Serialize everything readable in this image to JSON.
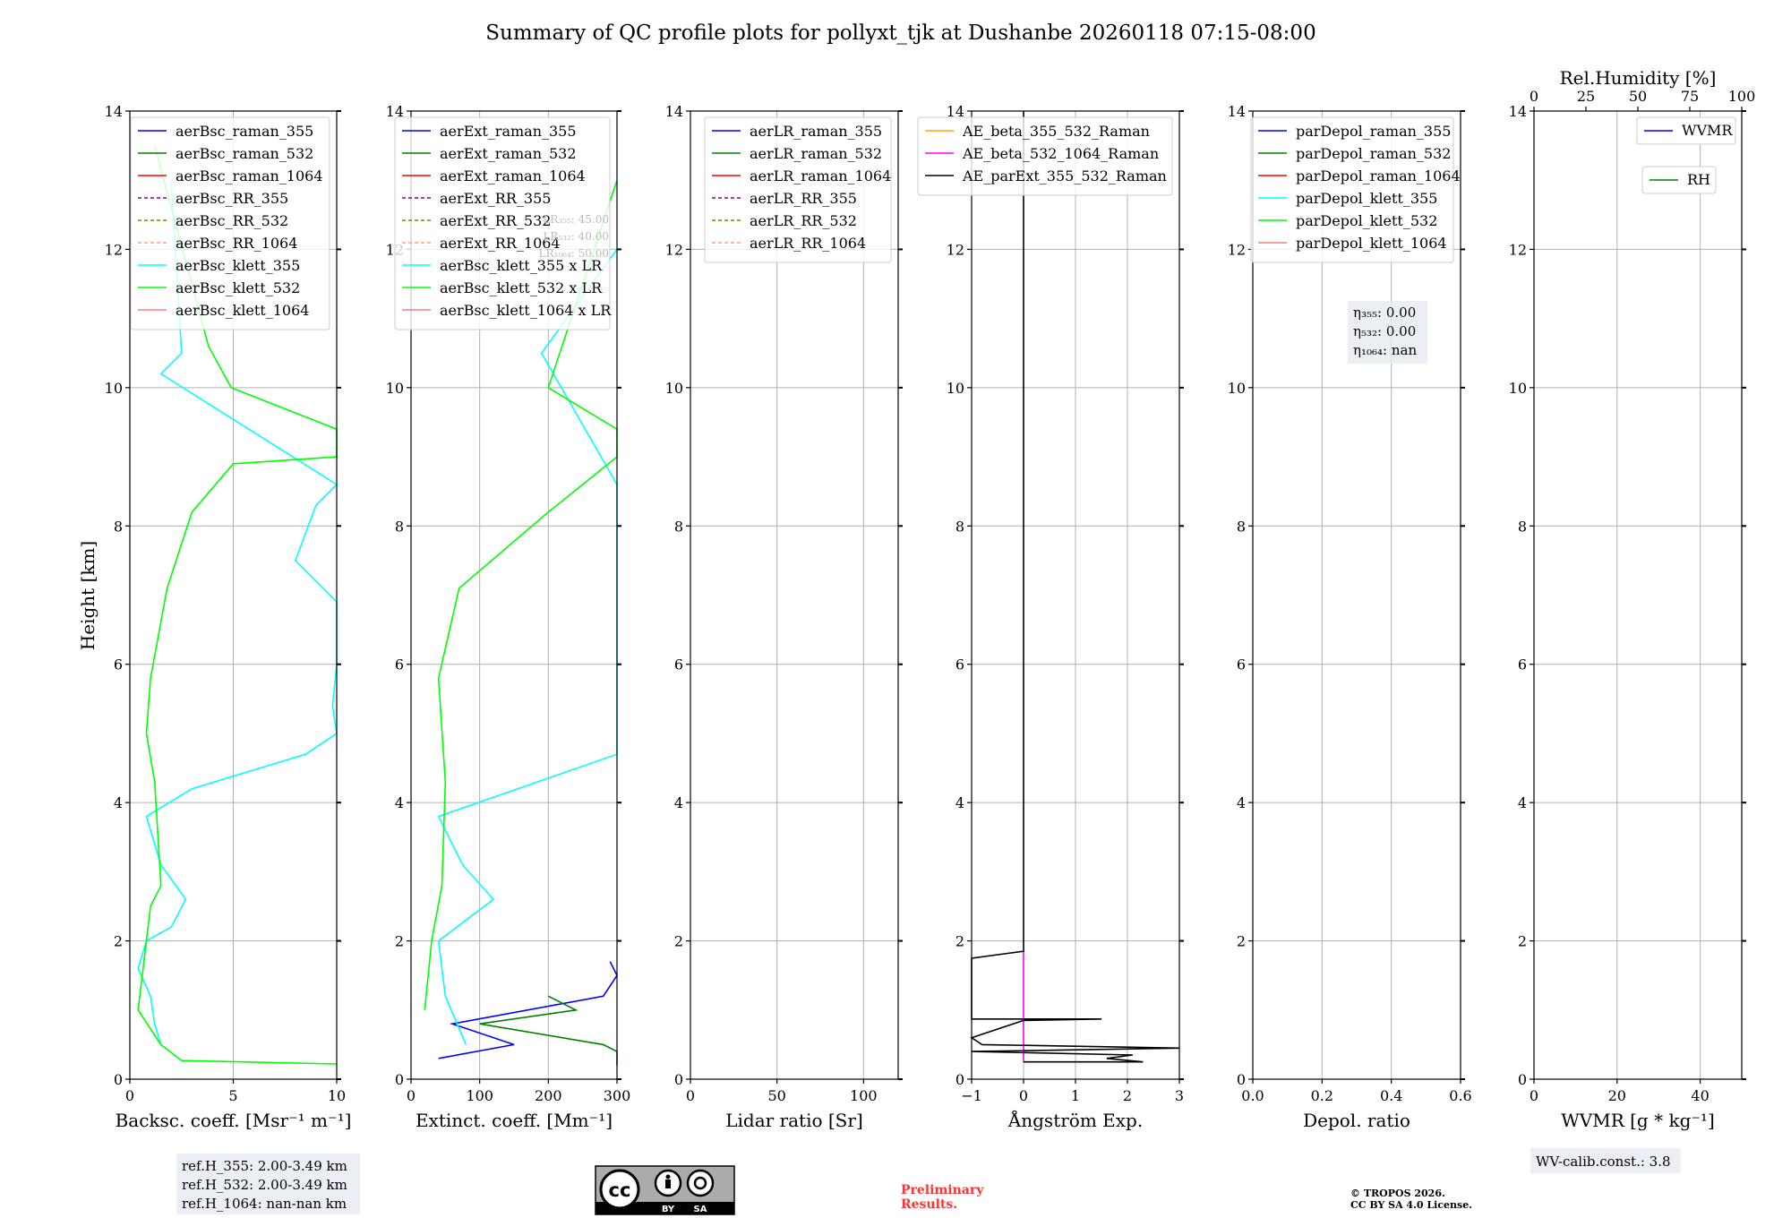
{
  "title": "Summary of QC profile plots for pollyxt_tjk at Dushanbe 20260118 07:15-08:00",
  "colors": {
    "raman_355": "#0000ff",
    "raman_532": "#008000",
    "raman_1064": "#ff0000",
    "rr_355": "#800080",
    "rr_532": "#808000",
    "rr_1064": "#ffa07a",
    "klett_355": "#00ffff",
    "klett_532": "#00ff00",
    "klett_1064": "#f08080",
    "ae_355_532": "#ffa500",
    "ae_532_1064": "#ff00ff",
    "ae_parext": "#000000",
    "wvmr": "#0000ff",
    "rh": "#008000",
    "prelim": "#ff0000"
  },
  "chart_data": [
    {
      "type": "line",
      "id": "bsc",
      "xlabel": "Backsc. coeff. [Msr⁻¹ m⁻¹]",
      "ylabel": "Height [km]",
      "xlim": [
        0,
        10
      ],
      "ylim": [
        0,
        14
      ],
      "xticks": [
        "0",
        "5",
        "10"
      ],
      "xtick_values": [
        0,
        5,
        10
      ],
      "yticks": [
        "0",
        "2",
        "4",
        "6",
        "8",
        "10",
        "12",
        "14"
      ],
      "grid": true,
      "legend_loc": "upper-right",
      "legend": [
        {
          "label": "aerBsc_raman_355",
          "color": "#0000ff",
          "dash": false
        },
        {
          "label": "aerBsc_raman_532",
          "color": "#008000",
          "dash": false
        },
        {
          "label": "aerBsc_raman_1064",
          "color": "#ff0000",
          "dash": false
        },
        {
          "label": "aerBsc_RR_355",
          "color": "#800080",
          "dash": true
        },
        {
          "label": "aerBsc_RR_532",
          "color": "#808000",
          "dash": true
        },
        {
          "label": "aerBsc_RR_1064",
          "color": "#ffa07a",
          "dash": true
        },
        {
          "label": "aerBsc_klett_355",
          "color": "#00ffff",
          "dash": false
        },
        {
          "label": "aerBsc_klett_532",
          "color": "#00ff00",
          "dash": false
        },
        {
          "label": "aerBsc_klett_1064",
          "color": "#f08080",
          "dash": false
        }
      ],
      "series": [
        {
          "name": "aerBsc_klett_355",
          "color": "#00ffff",
          "y": [
            0.5,
            0.8,
            1.2,
            1.6,
            2.0,
            2.2,
            2.6,
            3.1,
            3.8,
            4.2,
            4.7,
            5.0,
            5.4,
            6.0,
            6.9,
            7.5,
            8.3,
            8.6,
            10.2,
            10.5,
            13.0
          ],
          "x": [
            1.5,
            1.2,
            1.0,
            0.4,
            0.8,
            2.0,
            2.7,
            1.5,
            0.8,
            3.0,
            8.5,
            10,
            9.8,
            10,
            10,
            8,
            9,
            10,
            1.5,
            2.5,
            2.0
          ]
        },
        {
          "name": "aerBsc_klett_532",
          "color": "#00ff00",
          "y": [
            0.22,
            0.27,
            0.5,
            1.0,
            2.0,
            2.5,
            2.8,
            4.3,
            5.0,
            5.8,
            7.1,
            8.2,
            8.9,
            9.0,
            9.4,
            10.0,
            10.6,
            13.5
          ],
          "x": [
            10,
            2.5,
            1.5,
            0.4,
            0.8,
            1.0,
            1.5,
            1.2,
            0.8,
            1.0,
            1.8,
            3.0,
            5.0,
            10,
            10,
            4.9,
            3.8,
            1.2
          ]
        }
      ],
      "annotation": [
        "ref.H_355: 2.00-3.49 km",
        "ref.H_532: 2.00-3.49 km",
        "ref.H_1064: nan-nan km"
      ]
    },
    {
      "type": "line",
      "id": "ext",
      "xlabel": "Extinct. coeff. [Mm⁻¹]",
      "xlim": [
        0,
        300
      ],
      "ylim": [
        0,
        14
      ],
      "xticks": [
        "0",
        "100",
        "200",
        "300"
      ],
      "xtick_values": [
        0,
        100,
        200,
        300
      ],
      "yticks": [
        "0",
        "2",
        "4",
        "6",
        "8",
        "10",
        "12",
        "14"
      ],
      "grid": true,
      "legend_loc": "upper-right",
      "legend": [
        {
          "label": "aerExt_raman_355",
          "color": "#0000ff",
          "dash": false
        },
        {
          "label": "aerExt_raman_532",
          "color": "#008000",
          "dash": false
        },
        {
          "label": "aerExt_raman_1064",
          "color": "#ff0000",
          "dash": false
        },
        {
          "label": "aerExt_RR_355",
          "color": "#800080",
          "dash": true
        },
        {
          "label": "aerExt_RR_532",
          "color": "#808000",
          "dash": true
        },
        {
          "label": "aerExt_RR_1064",
          "color": "#ffa07a",
          "dash": true
        },
        {
          "label": "aerBsc_klett_355 x LR",
          "color": "#00ffff",
          "dash": false
        },
        {
          "label": "aerBsc_klett_532 x LR",
          "color": "#00ff00",
          "dash": false
        },
        {
          "label": "aerBsc_klett_1064 x LR",
          "color": "#f08080",
          "dash": false
        }
      ],
      "lr_labels": [
        "LR₃₅₅: 45.00",
        "LR₅₃₂: 40.00",
        "LR₁₀₆₄: 50.00"
      ],
      "series": [
        {
          "name": "aerExt_raman_355",
          "color": "#0000ff",
          "y": [
            0.3,
            0.5,
            0.8,
            1.2,
            1.5,
            1.7
          ],
          "x": [
            40,
            150,
            60,
            280,
            300,
            290
          ]
        },
        {
          "name": "aerExt_raman_532",
          "color": "#008000",
          "y": [
            0.2,
            0.4,
            0.5,
            0.8,
            1.0,
            1.2
          ],
          "x": [
            300,
            300,
            280,
            100,
            240,
            200
          ]
        },
        {
          "name": "aerBsc_klett_355 x LR",
          "color": "#00ffff",
          "y": [
            0.5,
            1.2,
            2.0,
            2.6,
            3.1,
            3.8,
            4.7,
            5.4,
            6.9,
            8.3,
            8.6,
            10.5,
            12.0
          ],
          "x": [
            80,
            50,
            40,
            120,
            75,
            40,
            300,
            300,
            300,
            300,
            300,
            190,
            300
          ]
        },
        {
          "name": "aerBsc_klett_532 x LR",
          "color": "#00ff00",
          "y": [
            1.0,
            2.0,
            2.8,
            4.3,
            5.8,
            7.1,
            8.2,
            9.0,
            9.4,
            10.0,
            13.0
          ],
          "x": [
            20,
            30,
            45,
            50,
            40,
            70,
            200,
            300,
            300,
            200,
            300
          ]
        }
      ]
    },
    {
      "type": "line",
      "id": "lr",
      "xlabel": "Lidar ratio [Sr]",
      "xlim": [
        0,
        120
      ],
      "ylim": [
        0,
        14
      ],
      "xticks": [
        "0",
        "50",
        "100"
      ],
      "xtick_values": [
        0,
        50,
        100
      ],
      "yticks": [
        "0",
        "2",
        "4",
        "6",
        "8",
        "10",
        "12",
        "14"
      ],
      "grid": true,
      "legend_loc": "upper-right",
      "legend": [
        {
          "label": "aerLR_raman_355",
          "color": "#0000ff",
          "dash": false
        },
        {
          "label": "aerLR_raman_532",
          "color": "#008000",
          "dash": false
        },
        {
          "label": "aerLR_raman_1064",
          "color": "#ff0000",
          "dash": false
        },
        {
          "label": "aerLR_RR_355",
          "color": "#800080",
          "dash": true
        },
        {
          "label": "aerLR_RR_532",
          "color": "#808000",
          "dash": true
        },
        {
          "label": "aerLR_RR_1064",
          "color": "#ffa07a",
          "dash": true
        }
      ],
      "series": []
    },
    {
      "type": "line",
      "id": "ae",
      "xlabel": "Ångström Exp.",
      "xlim": [
        -1,
        3
      ],
      "ylim": [
        0,
        14
      ],
      "xticks": [
        "−1",
        "0",
        "1",
        "2",
        "3"
      ],
      "xtick_values": [
        -1,
        0,
        1,
        2,
        3
      ],
      "yticks": [
        "0",
        "2",
        "4",
        "6",
        "8",
        "10",
        "12",
        "14"
      ],
      "grid": true,
      "legend_loc": "upper-right",
      "legend": [
        {
          "label": "AE_beta_355_532_Raman",
          "color": "#ffa500",
          "dash": false
        },
        {
          "label": "AE_beta_532_1064_Raman",
          "color": "#ff00ff",
          "dash": false
        },
        {
          "label": "AE_parExt_355_532_Raman",
          "color": "#000000",
          "dash": false
        }
      ],
      "series": [
        {
          "name": "AE_beta_532_1064_Raman",
          "color": "#ff00ff",
          "y": [
            0.25,
            1.85
          ],
          "x": [
            0,
            0
          ]
        },
        {
          "name": "AE_parExt_355_532_Raman",
          "color": "#000000",
          "y": [
            14.0,
            1.85,
            1.8,
            1.75,
            0.87,
            0.87,
            0.85,
            0.6,
            0.55,
            0.5,
            0.45,
            0.4,
            0.35,
            0.3,
            0.25,
            0.25
          ],
          "x": [
            0,
            0,
            -0.5,
            -1,
            -1,
            1.5,
            0,
            -1,
            -0.9,
            -0.8,
            3,
            -1,
            2.1,
            1.6,
            2.3,
            0
          ]
        }
      ]
    },
    {
      "type": "line",
      "id": "depol",
      "xlabel": "Depol. ratio",
      "xlim": [
        0,
        0.6
      ],
      "ylim": [
        0,
        14
      ],
      "xticks": [
        "0.0",
        "0.2",
        "0.4",
        "0.6"
      ],
      "xtick_values": [
        0,
        0.2,
        0.4,
        0.6
      ],
      "yticks": [
        "0",
        "2",
        "4",
        "6",
        "8",
        "10",
        "12",
        "14"
      ],
      "grid": true,
      "legend_loc": "upper-right",
      "legend": [
        {
          "label": "parDepol_raman_355",
          "color": "#0000ff",
          "dash": false
        },
        {
          "label": "parDepol_raman_532",
          "color": "#008000",
          "dash": false
        },
        {
          "label": "parDepol_raman_1064",
          "color": "#ff0000",
          "dash": false
        },
        {
          "label": "parDepol_klett_355",
          "color": "#00ffff",
          "dash": false
        },
        {
          "label": "parDepol_klett_532",
          "color": "#00ff00",
          "dash": false
        },
        {
          "label": "parDepol_klett_1064",
          "color": "#f08080",
          "dash": false
        }
      ],
      "eta": [
        "η₃₅₅: 0.00",
        "η₅₃₂: 0.00",
        "η₁₀₆₄: nan"
      ],
      "series": []
    },
    {
      "type": "line",
      "id": "wv",
      "xlabel": "WVMR [g * kg⁻¹]",
      "top_xlabel": "Rel.Humidity [%]",
      "xlim": [
        0,
        50
      ],
      "ylim": [
        0,
        14
      ],
      "top_xlim": [
        0,
        100
      ],
      "xticks": [
        "0",
        "20",
        "40"
      ],
      "xtick_values": [
        0,
        20,
        40
      ],
      "top_xticks": [
        "0",
        "25",
        "50",
        "75",
        "100"
      ],
      "top_xtick_values": [
        0,
        25,
        50,
        75,
        100
      ],
      "yticks": [
        "0",
        "2",
        "4",
        "6",
        "8",
        "10",
        "12",
        "14"
      ],
      "grid": true,
      "legend": [
        {
          "label": "WVMR",
          "color": "#0000ff",
          "dash": false
        },
        {
          "label": "RH",
          "color": "#008000",
          "dash": false
        }
      ],
      "calib": "WV-calib.const.: 3.8",
      "series": []
    }
  ],
  "footer": {
    "cc_left": "cc",
    "cc_by": "BY",
    "cc_sa": "SA",
    "prelim_line1": "Preliminary",
    "prelim_line2": "Results.",
    "copyright_line1": "© TROPOS 2026.",
    "copyright_line2": "CC BY SA 4.0 License."
  }
}
